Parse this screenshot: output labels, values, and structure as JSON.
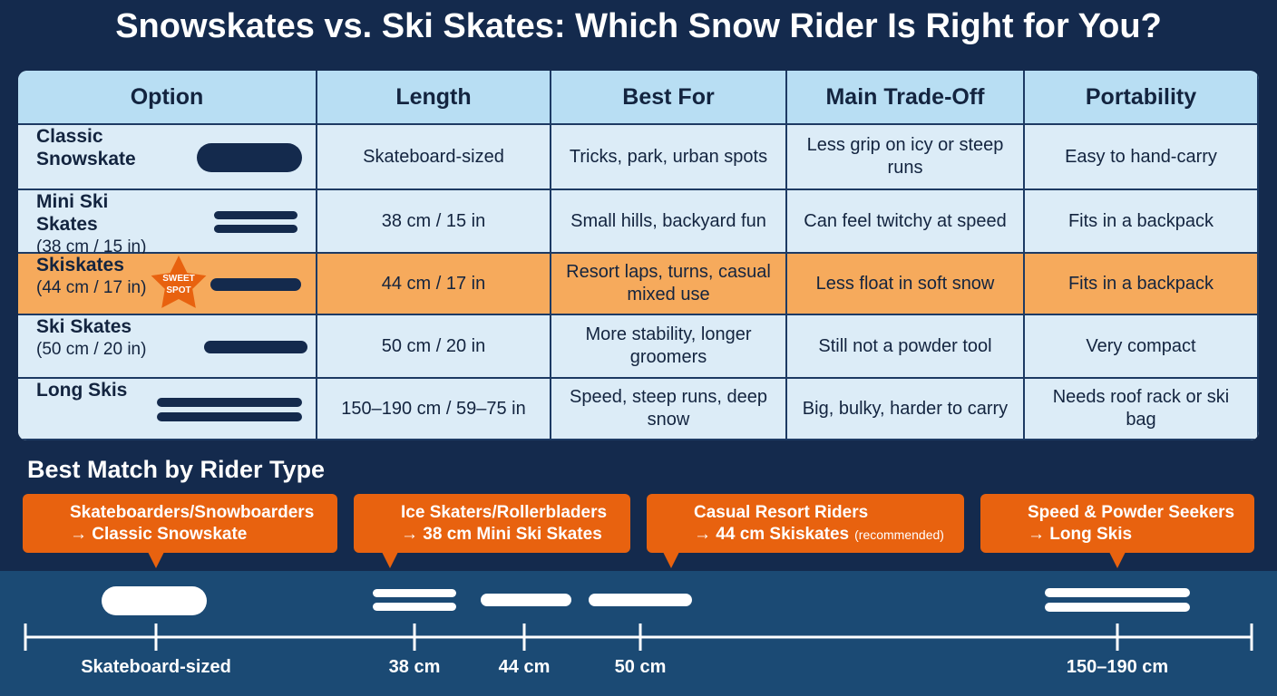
{
  "title": "Snowskates vs. Ski Skates: Which Snow Rider Is Right for You?",
  "table": {
    "headers": [
      "Option",
      "Length",
      "Best For",
      "Main Trade-Off",
      "Portability"
    ],
    "highlight_row": 2,
    "rows": [
      {
        "option": "Classic Snowskate",
        "cells": [
          "Skateboard-sized",
          "Tricks, park, urban spots",
          "Less grip on icy or steep runs",
          "Easy to hand-carry"
        ]
      },
      {
        "option": "Mini Ski Skates",
        "size": "(38 cm / 15 in)",
        "cells": [
          "38 cm / 15 in",
          "Small hills, backyard fun",
          "Can feel twitchy at speed",
          "Fits in a backpack"
        ]
      },
      {
        "option": "Skiskates",
        "size": "(44 cm / 17 in)",
        "badge": "SWEET SPOT",
        "cells": [
          "44 cm / 17 in",
          "Resort laps, turns, casual mixed use",
          "Less float in soft snow",
          "Fits in a backpack"
        ]
      },
      {
        "option": "Ski Skates",
        "size": "(50 cm / 20 in)",
        "cells": [
          "50 cm / 20 in",
          "More stability, longer groomers",
          "Still not a powder tool",
          "Very compact"
        ]
      },
      {
        "option": "Long Skis",
        "cells": [
          "150–190 cm / 59–75 in",
          "Speed, steep runs, deep snow",
          "Big, bulky, harder to carry",
          "Needs roof rack or ski bag"
        ]
      }
    ]
  },
  "riders": {
    "title": "Best Match by Rider Type",
    "cards": [
      {
        "who": "Skateboarders/Snowboarders",
        "match": "→ Classic Snowskate"
      },
      {
        "who": "Ice Skaters/Rollerbladers",
        "match": "→ 38 cm Mini Ski Skates"
      },
      {
        "who": "Casual Resort Riders",
        "match": "→ 44 cm Skiskates",
        "note": "(recommended)"
      },
      {
        "who": "Speed & Powder Seekers",
        "match": "→ Long Skis"
      }
    ]
  },
  "scale": {
    "labels": [
      "Skateboard-sized",
      "38 cm",
      "44 cm",
      "50 cm",
      "150–190 cm"
    ]
  }
}
